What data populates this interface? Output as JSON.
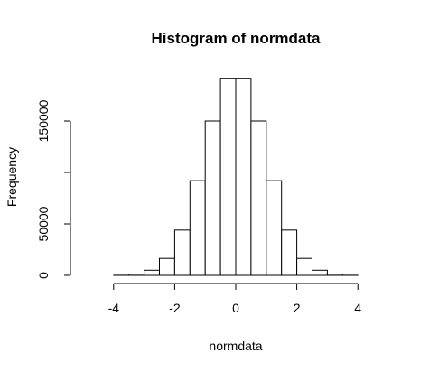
{
  "chart_data": {
    "type": "bar",
    "title": "Histogram of normdata",
    "xlabel": "normdata",
    "ylabel": "Frequency",
    "xlim": [
      -5,
      5
    ],
    "ylim": [
      0,
      195000
    ],
    "x_ticks": [
      -4,
      -2,
      0,
      2,
      4
    ],
    "x_tick_labels": [
      "-4",
      "-2",
      "0",
      "2",
      "4"
    ],
    "y_ticks": [
      0,
      50000,
      150000
    ],
    "y_tick_labels": [
      "0",
      "50000",
      "150000"
    ],
    "grid": false,
    "legend": "none",
    "bins": [
      {
        "x0": -5.0,
        "x1": -4.5,
        "value": 0
      },
      {
        "x0": -4.5,
        "x1": -4.0,
        "value": 0
      },
      {
        "x0": -4.0,
        "x1": -3.5,
        "value": 100
      },
      {
        "x0": -3.5,
        "x1": -3.0,
        "value": 1200
      },
      {
        "x0": -3.0,
        "x1": -2.5,
        "value": 5000
      },
      {
        "x0": -2.5,
        "x1": -2.0,
        "value": 16500
      },
      {
        "x0": -2.0,
        "x1": -1.5,
        "value": 44000
      },
      {
        "x0": -1.5,
        "x1": -1.0,
        "value": 92000
      },
      {
        "x0": -1.0,
        "x1": -0.5,
        "value": 150000
      },
      {
        "x0": -0.5,
        "x1": 0.0,
        "value": 191500
      },
      {
        "x0": 0.0,
        "x1": 0.5,
        "value": 191500
      },
      {
        "x0": 0.5,
        "x1": 1.0,
        "value": 150000
      },
      {
        "x0": 1.0,
        "x1": 1.5,
        "value": 92000
      },
      {
        "x0": 1.5,
        "x1": 2.0,
        "value": 44000
      },
      {
        "x0": 2.0,
        "x1": 2.5,
        "value": 16500
      },
      {
        "x0": 2.5,
        "x1": 3.0,
        "value": 5000
      },
      {
        "x0": 3.0,
        "x1": 3.5,
        "value": 1200
      },
      {
        "x0": 3.5,
        "x1": 4.0,
        "value": 100
      },
      {
        "x0": 4.0,
        "x1": 4.5,
        "value": 0
      },
      {
        "x0": 4.5,
        "x1": 5.0,
        "value": 0
      }
    ],
    "colors": {
      "bar_fill": "#ffffff",
      "bar_stroke": "#000000"
    }
  }
}
